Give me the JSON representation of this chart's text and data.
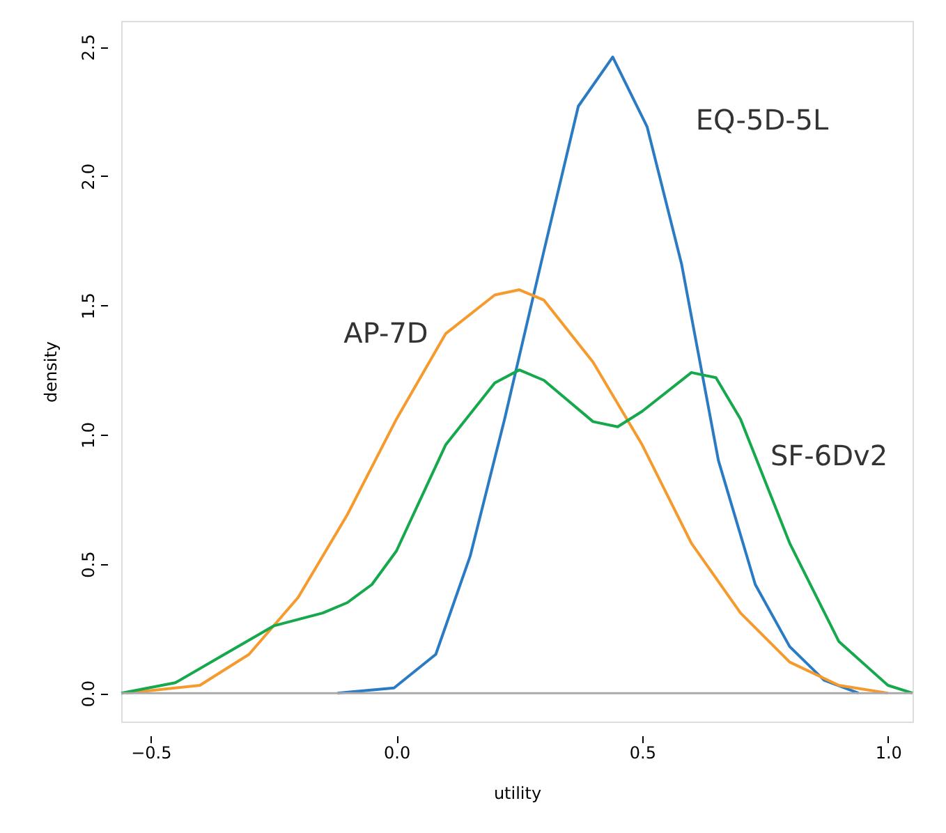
{
  "chart_data": {
    "type": "line",
    "xlabel": "utility",
    "ylabel": "density",
    "xlim": [
      -0.56,
      1.05
    ],
    "ylim": [
      -0.11,
      2.6
    ],
    "xticks": [
      -0.5,
      {
        "value": 0,
        "label": "0.0"
      },
      0.5,
      {
        "value": 1,
        "label": "1.0"
      }
    ],
    "yticks": [
      {
        "value": 0,
        "label": "0.0"
      },
      0.5,
      {
        "value": 1,
        "label": "1.0"
      },
      1.5,
      {
        "value": 2,
        "label": "2.0"
      },
      2.5
    ],
    "grid": false,
    "legend": false,
    "marker": "none",
    "line_style": "solid",
    "ref_lines": [
      {
        "axis": "y",
        "value": 0,
        "color": "#aaaaaa"
      }
    ],
    "series": [
      {
        "name": "EQ-5D-5L",
        "color": "#2a7bc4",
        "x": [
          -0.12,
          -0.005,
          0.08,
          0.15,
          0.22,
          0.3,
          0.37,
          0.44,
          0.51,
          0.58,
          0.655,
          0.73,
          0.8,
          0.87,
          0.94
        ],
        "values": [
          0,
          0.02,
          0.15,
          0.53,
          1.06,
          1.71,
          2.27,
          2.46,
          2.19,
          1.66,
          0.9,
          0.42,
          0.18,
          0.05,
          0
        ]
      },
      {
        "name": "AP-7D",
        "color": "#f59a2c",
        "x": [
          -0.55,
          -0.4,
          -0.3,
          -0.2,
          -0.1,
          0.0,
          0.1,
          0.2,
          0.25,
          0.3,
          0.4,
          0.5,
          0.6,
          0.7,
          0.8,
          0.9,
          1.0
        ],
        "values": [
          0,
          0.03,
          0.15,
          0.37,
          0.69,
          1.06,
          1.39,
          1.54,
          1.56,
          1.52,
          1.28,
          0.96,
          0.58,
          0.31,
          0.12,
          0.03,
          0
        ]
      },
      {
        "name": "SF-6Dv2",
        "color": "#16a84c",
        "x": [
          -0.56,
          -0.45,
          -0.35,
          -0.25,
          -0.15,
          -0.1,
          -0.05,
          0.0,
          0.1,
          0.2,
          0.25,
          0.3,
          0.4,
          0.45,
          0.5,
          0.6,
          0.65,
          0.7,
          0.8,
          0.9,
          1.0,
          1.05
        ],
        "values": [
          0,
          0.04,
          0.15,
          0.26,
          0.31,
          0.35,
          0.42,
          0.55,
          0.96,
          1.2,
          1.25,
          1.21,
          1.05,
          1.03,
          1.09,
          1.24,
          1.22,
          1.06,
          0.58,
          0.2,
          0.03,
          0
        ]
      }
    ]
  }
}
